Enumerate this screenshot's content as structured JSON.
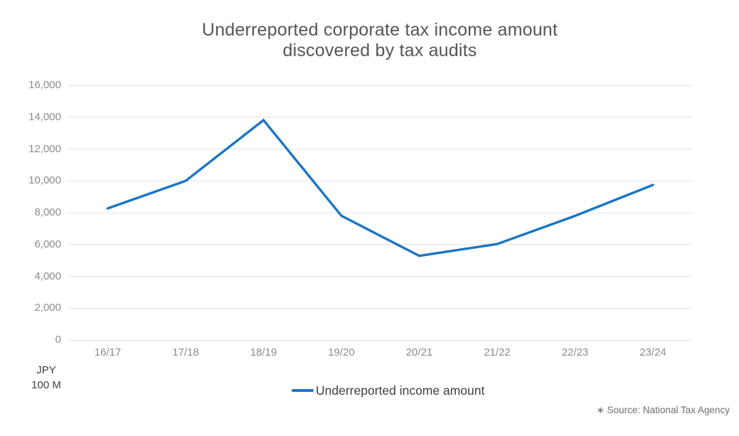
{
  "chart_data": {
    "type": "line",
    "title": "Underreported corporate tax income amount discovered by tax audits",
    "title_lines": [
      "Underreported corporate tax income amount",
      "discovered by tax audits"
    ],
    "categories": [
      "16/17",
      "17/18",
      "18/19",
      "19/20",
      "20/21",
      "21/22",
      "22/23",
      "23/24"
    ],
    "series": [
      {
        "name": "Underreported income amount",
        "values": [
          8267,
          9996,
          13813,
          7802,
          5286,
          6028,
          7801,
          9741
        ]
      }
    ],
    "xlabel": "",
    "ylabel": "JPY 100 M",
    "ylabel_lines": [
      "JPY",
      "100 M"
    ],
    "ylim": [
      0,
      16000
    ],
    "ytick_step": 2000,
    "yticks": [
      "0",
      "2,000",
      "4,000",
      "6,000",
      "8,000",
      "10,000",
      "12,000",
      "14,000",
      "16,000"
    ],
    "grid": "horizontal-only",
    "legend_position": "bottom-center",
    "line_color": "#1b75c4",
    "source_note": "∗ Source: National Tax Agency"
  }
}
